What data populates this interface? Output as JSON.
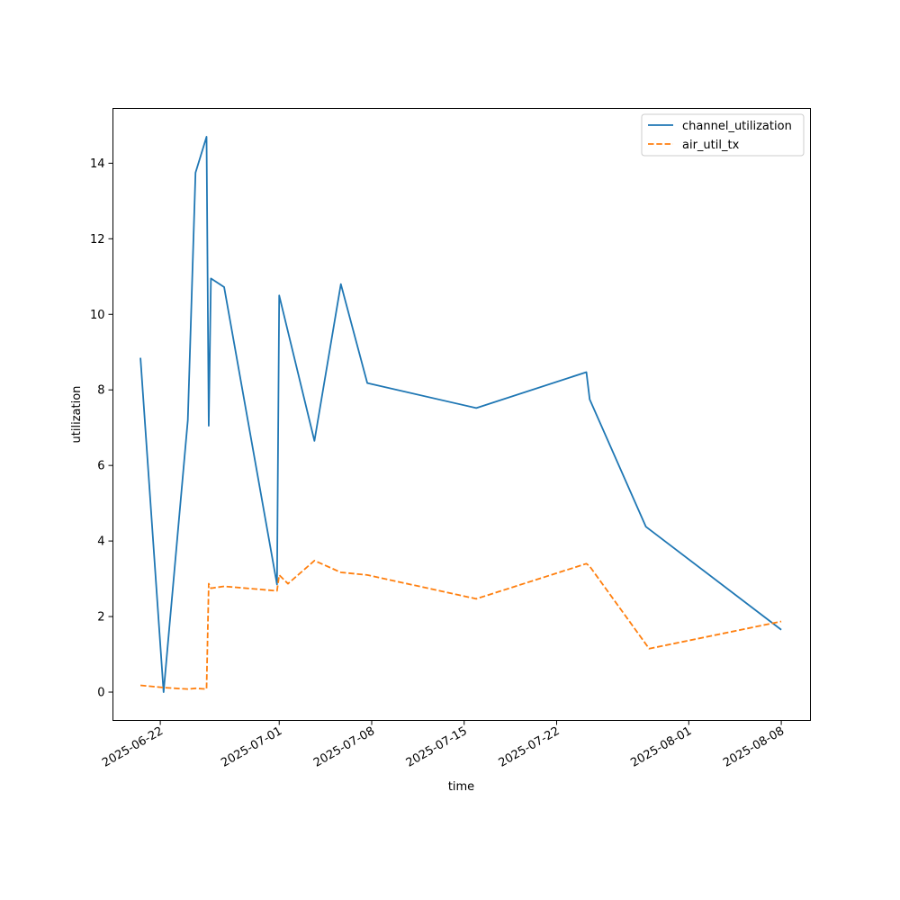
{
  "chart_data": {
    "type": "line",
    "title": "",
    "xlabel": "time",
    "ylabel": "utilization",
    "x_ticks": [
      "2025-06-22",
      "2025-07-01",
      "2025-07-08",
      "2025-07-15",
      "2025-07-22",
      "2025-08-01",
      "2025-08-08"
    ],
    "y_ticks": [
      "0",
      "2",
      "4",
      "6",
      "8",
      "10",
      "12",
      "14"
    ],
    "xlim": [
      "2025-06-18 10:00",
      "2025-08-10 05:00"
    ],
    "ylim": [
      -0.75,
      15.45
    ],
    "grid": false,
    "legend_position": "top-right",
    "series": [
      {
        "name": "channel_utilization",
        "color": "#1f77b4",
        "dash": "solid",
        "points": [
          {
            "x": "2025-06-20 12:00",
            "y": 8.85
          },
          {
            "x": "2025-06-22 06:00",
            "y": 0.0
          },
          {
            "x": "2025-06-24 02:00",
            "y": 7.2
          },
          {
            "x": "2025-06-24 16:00",
            "y": 13.75
          },
          {
            "x": "2025-06-25 12:00",
            "y": 14.7
          },
          {
            "x": "2025-06-25 16:00",
            "y": 7.05
          },
          {
            "x": "2025-06-25 20:00",
            "y": 10.95
          },
          {
            "x": "2025-06-26 20:00",
            "y": 10.72
          },
          {
            "x": "2025-06-30 20:00",
            "y": 2.85
          },
          {
            "x": "2025-07-01 00:00",
            "y": 10.5
          },
          {
            "x": "2025-07-03 16:00",
            "y": 6.65
          },
          {
            "x": "2025-07-05 16:00",
            "y": 10.8
          },
          {
            "x": "2025-07-07 16:00",
            "y": 8.18
          },
          {
            "x": "2025-07-15 22:00",
            "y": 7.52
          },
          {
            "x": "2025-07-24 06:00",
            "y": 8.47
          },
          {
            "x": "2025-07-24 12:00",
            "y": 7.75
          },
          {
            "x": "2025-07-28 18:00",
            "y": 4.38
          },
          {
            "x": "2025-08-08 00:00",
            "y": 1.65
          }
        ]
      },
      {
        "name": "air_util_tx",
        "color": "#ff7f0e",
        "dash": "dashed",
        "points": [
          {
            "x": "2025-06-20 12:00",
            "y": 0.18
          },
          {
            "x": "2025-06-22 06:00",
            "y": 0.12
          },
          {
            "x": "2025-06-24 02:00",
            "y": 0.08
          },
          {
            "x": "2025-06-24 16:00",
            "y": 0.1
          },
          {
            "x": "2025-06-25 12:00",
            "y": 0.08
          },
          {
            "x": "2025-06-25 16:00",
            "y": 2.87
          },
          {
            "x": "2025-06-25 20:00",
            "y": 2.75
          },
          {
            "x": "2025-06-26 20:00",
            "y": 2.8
          },
          {
            "x": "2025-06-30 20:00",
            "y": 2.68
          },
          {
            "x": "2025-07-01 00:00",
            "y": 3.1
          },
          {
            "x": "2025-07-01 16:00",
            "y": 2.87
          },
          {
            "x": "2025-07-03 16:00",
            "y": 3.48
          },
          {
            "x": "2025-07-05 16:00",
            "y": 3.17
          },
          {
            "x": "2025-07-07 16:00",
            "y": 3.1
          },
          {
            "x": "2025-07-15 22:00",
            "y": 2.47
          },
          {
            "x": "2025-07-24 06:00",
            "y": 3.4
          },
          {
            "x": "2025-07-24 12:00",
            "y": 3.33
          },
          {
            "x": "2025-07-29 00:00",
            "y": 1.15
          },
          {
            "x": "2025-08-08 00:00",
            "y": 1.87
          }
        ]
      }
    ]
  }
}
